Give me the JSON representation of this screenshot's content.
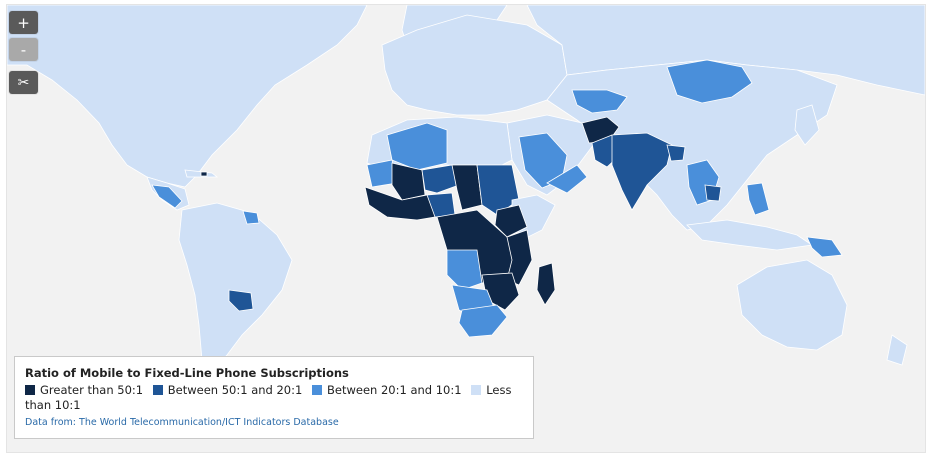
{
  "controls": {
    "zoom_in_label": "+",
    "zoom_out_label": "-",
    "scissors_label": "✂"
  },
  "legend": {
    "title": "Ratio of Mobile to Fixed-Line Phone Subscriptions",
    "items": [
      {
        "label": "Greater than 50:1",
        "color": "#0f2747"
      },
      {
        "label": "Between 50:1 and 20:1",
        "color": "#1f5596"
      },
      {
        "label": "Between 20:1 and 10:1",
        "color": "#4a8fda"
      },
      {
        "label": "Less than 10:1",
        "color": "#cfe0f6"
      }
    ],
    "source": "Data from: The World Telecommunication/ICT Indicators Database"
  },
  "colors": {
    "ocean": "#f2f2f2",
    "greater_than_50": "#0f2747",
    "between_50_20": "#1f5596",
    "between_20_10": "#4a8fda",
    "less_than_10": "#cfe0f6"
  }
}
